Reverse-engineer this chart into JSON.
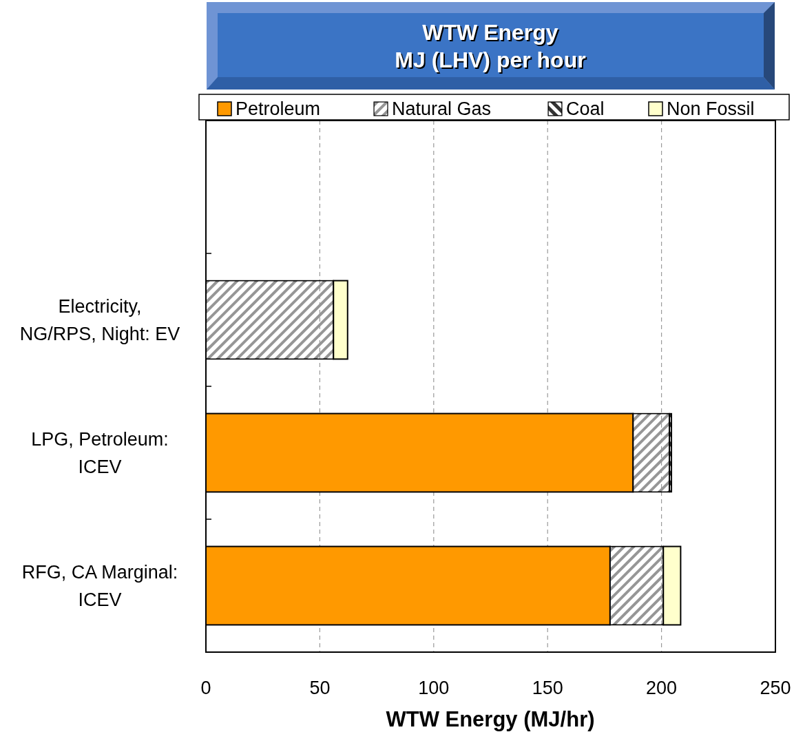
{
  "chart_data": {
    "type": "bar",
    "orientation": "horizontal",
    "stacked": true,
    "title": "WTW Energy\nMJ (LHV) per hour",
    "xlabel": "WTW Energy (MJ/hr)",
    "categories": [
      null,
      "Electricity, NG/RPS, Night: EV",
      "LPG, Petroleum: ICEV",
      "RFG, CA Marginal: ICEV"
    ],
    "series": [
      {
        "name": "Petroleum",
        "color": "#ff9900",
        "values": [
          null,
          null,
          187.5,
          177.4
        ]
      },
      {
        "name": "Natural Gas",
        "color": "#969696",
        "values": [
          null,
          56.0,
          16.0,
          23.4
        ]
      },
      {
        "name": "Coal",
        "color": "#333333",
        "values": [
          null,
          null,
          0.9,
          null
        ]
      },
      {
        "name": "Non Fossil",
        "color": "#ffffcc",
        "values": [
          null,
          6.2,
          null,
          7.6
        ]
      }
    ],
    "xlim": [
      0,
      250
    ],
    "xticks": [
      0,
      50,
      100,
      150,
      200,
      250
    ],
    "grid": "x",
    "legend": "top"
  }
}
